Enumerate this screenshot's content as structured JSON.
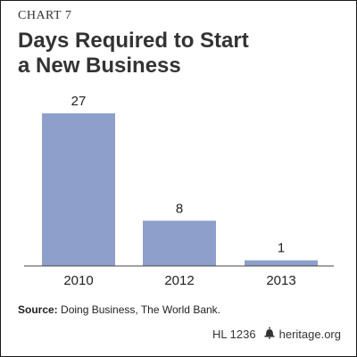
{
  "header": {
    "chart_label": "CHART 7",
    "title_line1": "Days Required to Start",
    "title_line2": "a New Business"
  },
  "chart_data": {
    "type": "bar",
    "categories": [
      "2010",
      "2012",
      "2013"
    ],
    "values": [
      27,
      8,
      1
    ],
    "data_labels": [
      "27",
      "8",
      "1"
    ],
    "ylim": [
      0,
      27
    ],
    "grid": false,
    "legend": "none",
    "bar_color": "#8e9fcc"
  },
  "source": {
    "label": "Source:",
    "text": " Doing Business, The World Bank."
  },
  "footer": {
    "code": "HL 1236",
    "site": "heritage.org",
    "icon": "liberty-bell-icon"
  }
}
